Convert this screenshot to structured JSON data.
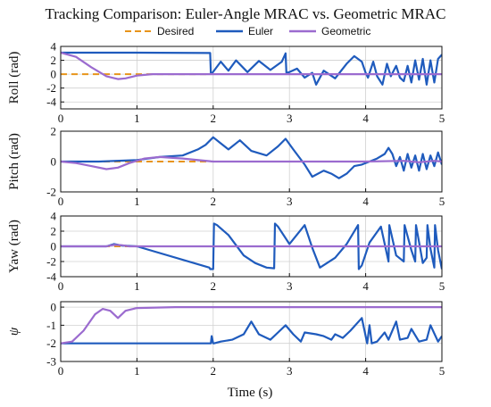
{
  "colors": {
    "desired": "#e8941a",
    "euler": "#1f5bbd",
    "geometric": "#9b6bcf",
    "grid": "#d0d0d0",
    "axis": "#111111"
  },
  "title": "Tracking Comparison: Euler-Angle MRAC vs. Geometric MRAC",
  "xlabel": "Time (s)",
  "legend": [
    "Desired",
    "Euler",
    "Geometric"
  ],
  "chart_data": [
    {
      "type": "line",
      "ylabel": "Roll (rad)",
      "xlim": [
        0,
        5
      ],
      "ylim": [
        -5,
        4
      ],
      "xticks": [
        "0",
        "1",
        "2",
        "3",
        "4",
        "5"
      ],
      "yticks": [
        "4",
        "2",
        "0",
        "-2",
        "-4"
      ],
      "grid": true,
      "legend_position": "top",
      "series": [
        {
          "name": "Desired",
          "style": "dashed",
          "x": [
            0,
            1.97
          ],
          "y": [
            0,
            0
          ]
        },
        {
          "name": "Euler",
          "x": [
            0,
            1.0,
            1.96,
            1.97,
            1.99,
            2.1,
            2.2,
            2.3,
            2.45,
            2.6,
            2.75,
            2.9,
            2.95,
            2.96,
            3.0,
            3.1,
            3.2,
            3.3,
            3.35,
            3.45,
            3.6,
            3.75,
            3.85,
            3.95,
            4.0,
            4.03,
            4.1,
            4.15,
            4.22,
            4.28,
            4.33,
            4.4,
            4.45,
            4.5,
            4.55,
            4.6,
            4.65,
            4.7,
            4.75,
            4.8,
            4.85,
            4.9,
            4.95,
            5.0
          ],
          "y": [
            3.1,
            3.1,
            3.05,
            0.1,
            0.2,
            1.8,
            0.5,
            2.0,
            0.3,
            1.9,
            0.6,
            1.8,
            3.0,
            0.2,
            0.3,
            0.8,
            -0.5,
            0.2,
            -1.5,
            0.5,
            -0.6,
            1.5,
            2.6,
            1.8,
            0.2,
            -0.5,
            1.8,
            -0.3,
            -1.5,
            1.5,
            -0.3,
            1.2,
            -0.5,
            -1.0,
            1.2,
            -1.2,
            2.0,
            -0.8,
            2.2,
            -1.5,
            2.0,
            -1.2,
            2.2,
            2.8
          ]
        },
        {
          "name": "Geometric",
          "x": [
            0,
            0.2,
            0.4,
            0.6,
            0.75,
            0.85,
            1.0,
            1.2,
            1.5,
            2.0,
            3.0,
            4.0,
            5.0
          ],
          "y": [
            3.1,
            2.5,
            1.0,
            -0.3,
            -0.7,
            -0.6,
            -0.2,
            0.0,
            0.0,
            0.0,
            0.0,
            0.0,
            0.0
          ]
        }
      ]
    },
    {
      "type": "line",
      "ylabel": "Pitch (rad)",
      "xlim": [
        0,
        5
      ],
      "ylim": [
        -2,
        2
      ],
      "xticks": [
        "0",
        "1",
        "2",
        "3",
        "4",
        "5"
      ],
      "yticks": [
        "2",
        "0",
        "-2"
      ],
      "grid": true,
      "series": [
        {
          "name": "Desired",
          "style": "dashed",
          "x": [
            0,
            2.1
          ],
          "y": [
            0,
            0
          ]
        },
        {
          "name": "Euler",
          "x": [
            0,
            0.5,
            1.0,
            1.3,
            1.6,
            1.8,
            1.9,
            2.0,
            2.1,
            2.2,
            2.35,
            2.5,
            2.7,
            2.85,
            2.95,
            3.05,
            3.2,
            3.3,
            3.45,
            3.55,
            3.65,
            3.75,
            3.85,
            3.95,
            4.05,
            4.15,
            4.25,
            4.3,
            4.35,
            4.4,
            4.45,
            4.5,
            4.55,
            4.6,
            4.65,
            4.7,
            4.75,
            4.8,
            4.85,
            4.9,
            4.95,
            5.0
          ],
          "y": [
            0,
            0,
            0.1,
            0.3,
            0.4,
            0.8,
            1.1,
            1.6,
            1.2,
            0.8,
            1.4,
            0.7,
            0.4,
            1.0,
            1.5,
            0.8,
            -0.2,
            -1.0,
            -0.6,
            -0.8,
            -1.1,
            -0.8,
            -0.3,
            -0.2,
            0.0,
            0.2,
            0.5,
            0.9,
            0.5,
            -0.3,
            0.3,
            -0.6,
            0.5,
            -0.4,
            0.4,
            -0.6,
            0.5,
            -0.5,
            0.4,
            -0.3,
            0.6,
            -0.2
          ]
        },
        {
          "name": "Geometric",
          "x": [
            0,
            0.2,
            0.4,
            0.6,
            0.75,
            0.9,
            1.1,
            1.3,
            1.6,
            2.0,
            3.0,
            4.0,
            4.5,
            4.7,
            4.9,
            5.0
          ],
          "y": [
            0,
            -0.1,
            -0.3,
            -0.5,
            -0.4,
            -0.1,
            0.2,
            0.3,
            0.2,
            0.0,
            0.0,
            0.0,
            0.05,
            -0.05,
            0.05,
            0.0
          ]
        }
      ]
    },
    {
      "type": "line",
      "ylabel": "Yaw (rad)",
      "xlim": [
        0,
        5
      ],
      "ylim": [
        -4,
        4
      ],
      "xticks": [
        "0",
        "1",
        "2",
        "3",
        "4",
        "5"
      ],
      "yticks": [
        "4",
        "2",
        "0",
        "-2",
        "-4"
      ],
      "grid": true,
      "series": [
        {
          "name": "Desired",
          "style": "dashed",
          "x": [
            0,
            5
          ],
          "y": [
            0,
            0
          ]
        },
        {
          "name": "Euler",
          "x": [
            0,
            0.6,
            0.7,
            0.8,
            1.0,
            1.95,
            1.96,
            2.0,
            2.01,
            2.05,
            2.2,
            2.4,
            2.55,
            2.7,
            2.8,
            2.81,
            2.85,
            3.0,
            3.2,
            3.3,
            3.4,
            3.6,
            3.75,
            3.9,
            3.91,
            3.95,
            4.05,
            4.2,
            4.3,
            4.31,
            4.4,
            4.5,
            4.51,
            4.6,
            4.65,
            4.66,
            4.75,
            4.8,
            4.81,
            4.85,
            4.9,
            4.91,
            4.95,
            5.0
          ],
          "y": [
            0,
            0,
            0.3,
            0.1,
            0,
            -2.8,
            -3.0,
            -3.0,
            3.0,
            2.8,
            1.5,
            -1.2,
            -2.2,
            -2.8,
            -2.9,
            3.0,
            2.6,
            0.3,
            2.8,
            -0.2,
            -2.8,
            -1.5,
            0.3,
            2.8,
            -3.0,
            -2.5,
            0.5,
            2.6,
            -2.0,
            2.8,
            -1.2,
            -2.0,
            2.8,
            -0.5,
            -2.0,
            2.8,
            -2.2,
            -1.5,
            2.8,
            -0.3,
            -2.8,
            2.8,
            -0.5,
            -3.0
          ]
        },
        {
          "name": "Geometric",
          "x": [
            0,
            0.6,
            0.7,
            0.8,
            0.9,
            1.0,
            2.0,
            5.0
          ],
          "y": [
            0,
            0,
            0.2,
            0.15,
            0,
            0,
            0,
            0
          ]
        }
      ]
    },
    {
      "type": "line",
      "ylabel": "ψ",
      "xlim": [
        0,
        5
      ],
      "ylim": [
        -3,
        0.3
      ],
      "xticks": [
        "0",
        "1",
        "2",
        "3",
        "4",
        "5"
      ],
      "yticks": [
        "0",
        "-1",
        "-2",
        "-3"
      ],
      "grid": true,
      "series": [
        {
          "name": "Euler",
          "x": [
            0,
            1.0,
            1.97,
            1.98,
            2.0,
            2.01,
            2.1,
            2.25,
            2.4,
            2.5,
            2.6,
            2.75,
            2.85,
            2.95,
            3.05,
            3.15,
            3.2,
            3.35,
            3.45,
            3.55,
            3.6,
            3.7,
            3.8,
            3.95,
            4.02,
            4.05,
            4.08,
            4.15,
            4.25,
            4.3,
            4.4,
            4.45,
            4.55,
            4.6,
            4.7,
            4.8,
            4.85,
            4.95,
            5.0
          ],
          "y": [
            -2,
            -2,
            -2,
            -1.6,
            -2,
            -2,
            -1.9,
            -1.8,
            -1.5,
            -0.8,
            -1.5,
            -1.8,
            -1.4,
            -1.0,
            -1.5,
            -1.9,
            -1.4,
            -1.5,
            -1.6,
            -1.8,
            -1.5,
            -1.7,
            -1.3,
            -0.6,
            -2.0,
            -1.0,
            -2.0,
            -1.9,
            -1.4,
            -1.8,
            -0.8,
            -1.8,
            -1.7,
            -1.2,
            -1.9,
            -1.8,
            -1.0,
            -1.9,
            -1.6
          ]
        },
        {
          "name": "Geometric",
          "x": [
            0,
            0.15,
            0.3,
            0.45,
            0.55,
            0.65,
            0.75,
            0.85,
            1.0,
            1.5,
            3.0,
            5.0
          ],
          "y": [
            -2,
            -1.9,
            -1.3,
            -0.4,
            -0.1,
            -0.2,
            -0.6,
            -0.2,
            -0.05,
            0,
            0,
            0
          ]
        }
      ]
    }
  ]
}
